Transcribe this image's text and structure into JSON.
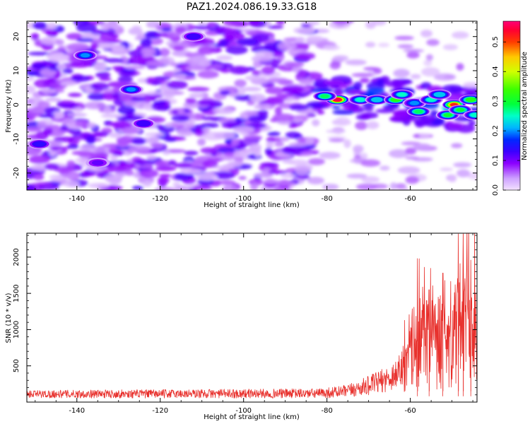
{
  "title": "PAZ1.2024.086.19.33.G18",
  "chart_data": [
    {
      "type": "heatmap",
      "xlabel": "Height of straight line (km)",
      "ylabel": "Frequency (Hz)",
      "xlim": [
        -152,
        -44
      ],
      "ylim": [
        -25,
        24.5
      ],
      "x_ticks": [
        -140,
        -120,
        -100,
        -80,
        -60
      ],
      "y_ticks": [
        -20,
        -10,
        0,
        10,
        20
      ],
      "colorbar": {
        "label": "Normalized spectral amplitude",
        "range": [
          0,
          0.57
        ],
        "ticks": [
          0.0,
          0.1,
          0.2,
          0.3,
          0.4,
          0.5
        ],
        "colormap": "gist_rainbow_r"
      },
      "ridge": {
        "description_points_x": [
          -82,
          -75,
          -68,
          -62,
          -56,
          -50,
          -44
        ],
        "description_points_y": [
          2.5,
          1.5,
          1.5,
          1.0,
          0.0,
          -1.0,
          -1.5
        ]
      },
      "hotspots": [
        {
          "x": -77.5,
          "y": 1.5,
          "value": 0.55
        },
        {
          "x": -80.5,
          "y": 2.5,
          "value": 0.28
        },
        {
          "x": -72,
          "y": 1.5,
          "value": 0.25
        },
        {
          "x": -68,
          "y": 1.5,
          "value": 0.22
        },
        {
          "x": -63.5,
          "y": 1.5,
          "value": 0.32
        },
        {
          "x": -62,
          "y": 3,
          "value": 0.25
        },
        {
          "x": -59,
          "y": 0.5,
          "value": 0.2
        },
        {
          "x": -58,
          "y": -2,
          "value": 0.28
        },
        {
          "x": -55,
          "y": 1.5,
          "value": 0.25
        },
        {
          "x": -53,
          "y": 3,
          "value": 0.22
        },
        {
          "x": -51,
          "y": -3,
          "value": 0.3
        },
        {
          "x": -49.5,
          "y": 0,
          "value": 0.52
        },
        {
          "x": -48,
          "y": -1.5,
          "value": 0.3
        },
        {
          "x": -45.5,
          "y": 1.5,
          "value": 0.32
        },
        {
          "x": -44.5,
          "y": -3,
          "value": 0.25
        },
        {
          "x": -138,
          "y": 14.5,
          "value": 0.2
        },
        {
          "x": -127,
          "y": 4.5,
          "value": 0.2
        },
        {
          "x": -149,
          "y": -11.5,
          "value": 0.14
        },
        {
          "x": -124,
          "y": -5.5,
          "value": 0.13
        },
        {
          "x": -112,
          "y": 20,
          "value": 0.13
        },
        {
          "x": -135,
          "y": -17,
          "value": 0.11
        }
      ]
    },
    {
      "type": "line",
      "xlabel": "Height of straight line (km)",
      "ylabel": "SNR (10 * v/v)",
      "xlim": [
        -152,
        -44
      ],
      "ylim": [
        0,
        2330
      ],
      "x_ticks": [
        -140,
        -120,
        -100,
        -80,
        -60
      ],
      "y_ticks": [
        500,
        1000,
        1500,
        2000
      ],
      "color": "#e8302c",
      "envelope": [
        {
          "x": -152,
          "base": 110,
          "spread": 90
        },
        {
          "x": -82,
          "base": 120,
          "spread": 110
        },
        {
          "x": -75,
          "base": 150,
          "spread": 150
        },
        {
          "x": -70,
          "base": 230,
          "spread": 220
        },
        {
          "x": -65,
          "base": 330,
          "spread": 300
        },
        {
          "x": -61,
          "base": 500,
          "spread": 450
        },
        {
          "x": -59,
          "base": 750,
          "spread": 700
        },
        {
          "x": -55,
          "base": 800,
          "spread": 800
        },
        {
          "x": -50,
          "base": 900,
          "spread": 900
        },
        {
          "x": -46,
          "base": 1000,
          "spread": 1100
        },
        {
          "x": -44,
          "base": 900,
          "spread": 800
        }
      ],
      "peaks": [
        {
          "x": -58.3,
          "y": 1980
        },
        {
          "x": -55.5,
          "y": 1550
        },
        {
          "x": -52.2,
          "y": 1780
        },
        {
          "x": -48.5,
          "y": 2320
        },
        {
          "x": -47.3,
          "y": 2320
        },
        {
          "x": -45.5,
          "y": 1960
        }
      ]
    }
  ]
}
